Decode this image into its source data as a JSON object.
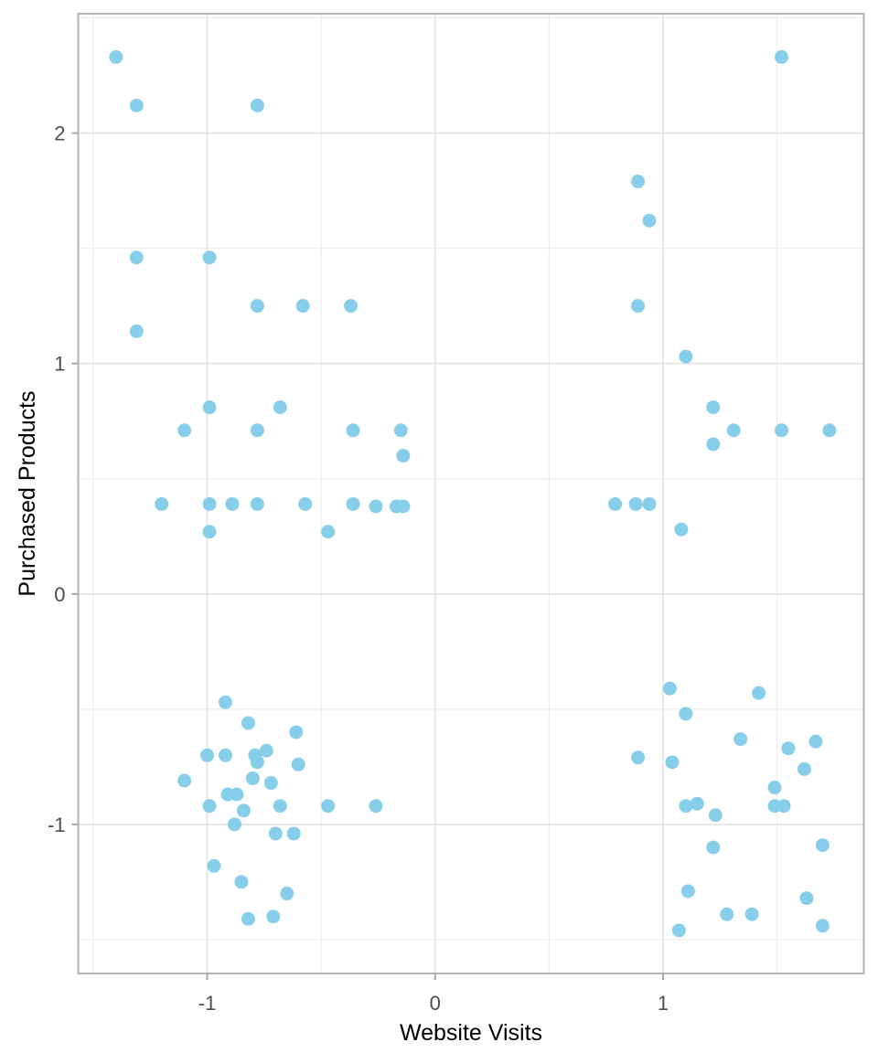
{
  "figure": {
    "background": "#ffffff"
  },
  "chart_data": {
    "type": "scatter",
    "title": "",
    "xlabel": "Website Visits",
    "ylabel": "Purchased Products",
    "legend": "none",
    "grid": "major+minor",
    "xlim": [
      -1.566,
      1.881
    ],
    "ylim": [
      -1.647,
      2.518
    ],
    "x_ticks": [
      -1,
      0,
      1
    ],
    "x_tick_labels": [
      "-1",
      "0",
      "1"
    ],
    "y_ticks": [
      -1,
      0,
      1,
      2
    ],
    "y_tick_labels": [
      "-1",
      "0",
      "1",
      "2"
    ],
    "x_minor_ticks": [
      -1.5,
      -0.5,
      0.5,
      1.5
    ],
    "y_minor_ticks": [
      -1.5,
      -0.5,
      0.5,
      1.5,
      2.5
    ],
    "style": {
      "point_color": "#87CEEB",
      "point_radius": 7.5,
      "panel_border_color": "#b3b3b3",
      "grid_major_color": "#e2e2e2",
      "grid_minor_color": "#ececec",
      "tick_color": "#a6a6a6",
      "tick_label_color": "#4d4d4d",
      "axis_title_color": "#000000"
    },
    "points": [
      [
        -1.4,
        2.33
      ],
      [
        1.52,
        2.33
      ],
      [
        -1.31,
        2.12
      ],
      [
        -0.78,
        2.12
      ],
      [
        0.89,
        1.79
      ],
      [
        0.94,
        1.62
      ],
      [
        -1.31,
        1.46
      ],
      [
        -0.99,
        1.46
      ],
      [
        -0.78,
        1.25
      ],
      [
        -0.58,
        1.25
      ],
      [
        -0.37,
        1.25
      ],
      [
        0.89,
        1.25
      ],
      [
        -1.31,
        1.14
      ],
      [
        1.1,
        1.03
      ],
      [
        -0.99,
        0.81
      ],
      [
        -0.68,
        0.81
      ],
      [
        1.22,
        0.81
      ],
      [
        -1.1,
        0.71
      ],
      [
        -0.78,
        0.71
      ],
      [
        -0.36,
        0.71
      ],
      [
        -0.15,
        0.71
      ],
      [
        1.31,
        0.71
      ],
      [
        1.52,
        0.71
      ],
      [
        1.73,
        0.71
      ],
      [
        1.22,
        0.65
      ],
      [
        -0.14,
        0.6
      ],
      [
        -1.2,
        0.39
      ],
      [
        -0.99,
        0.39
      ],
      [
        -0.89,
        0.39
      ],
      [
        -0.78,
        0.39
      ],
      [
        -0.57,
        0.39
      ],
      [
        -0.36,
        0.39
      ],
      [
        -0.26,
        0.38
      ],
      [
        -0.17,
        0.38
      ],
      [
        -0.14,
        0.38
      ],
      [
        0.79,
        0.39
      ],
      [
        0.88,
        0.39
      ],
      [
        0.94,
        0.39
      ],
      [
        -0.99,
        0.27
      ],
      [
        -0.47,
        0.27
      ],
      [
        1.08,
        0.28
      ],
      [
        1.03,
        -0.41
      ],
      [
        1.42,
        -0.43
      ],
      [
        -0.92,
        -0.47
      ],
      [
        1.1,
        -0.52
      ],
      [
        -0.82,
        -0.56
      ],
      [
        -0.61,
        -0.6
      ],
      [
        1.34,
        -0.63
      ],
      [
        1.67,
        -0.64
      ],
      [
        1.55,
        -0.67
      ],
      [
        -0.74,
        -0.68
      ],
      [
        -1.0,
        -0.7
      ],
      [
        -0.92,
        -0.7
      ],
      [
        -0.79,
        -0.7
      ],
      [
        -0.78,
        -0.73
      ],
      [
        -0.6,
        -0.74
      ],
      [
        0.89,
        -0.71
      ],
      [
        1.04,
        -0.73
      ],
      [
        1.62,
        -0.76
      ],
      [
        -1.1,
        -0.81
      ],
      [
        -0.8,
        -0.8
      ],
      [
        -0.72,
        -0.82
      ],
      [
        1.49,
        -0.84
      ],
      [
        -0.91,
        -0.87
      ],
      [
        -0.87,
        -0.87
      ],
      [
        -0.99,
        -0.92
      ],
      [
        -0.68,
        -0.92
      ],
      [
        -0.47,
        -0.92
      ],
      [
        -0.26,
        -0.92
      ],
      [
        1.15,
        -0.91
      ],
      [
        1.1,
        -0.92
      ],
      [
        1.49,
        -0.92
      ],
      [
        1.53,
        -0.92
      ],
      [
        -0.84,
        -0.94
      ],
      [
        1.23,
        -0.96
      ],
      [
        -0.88,
        -1.0
      ],
      [
        -0.7,
        -1.04
      ],
      [
        -0.62,
        -1.04
      ],
      [
        1.22,
        -1.1
      ],
      [
        1.7,
        -1.09
      ],
      [
        -0.97,
        -1.18
      ],
      [
        -0.85,
        -1.25
      ],
      [
        1.11,
        -1.29
      ],
      [
        -0.65,
        -1.3
      ],
      [
        1.63,
        -1.32
      ],
      [
        -0.82,
        -1.41
      ],
      [
        -0.71,
        -1.4
      ],
      [
        1.28,
        -1.39
      ],
      [
        1.39,
        -1.39
      ],
      [
        1.07,
        -1.46
      ],
      [
        1.7,
        -1.44
      ]
    ]
  }
}
